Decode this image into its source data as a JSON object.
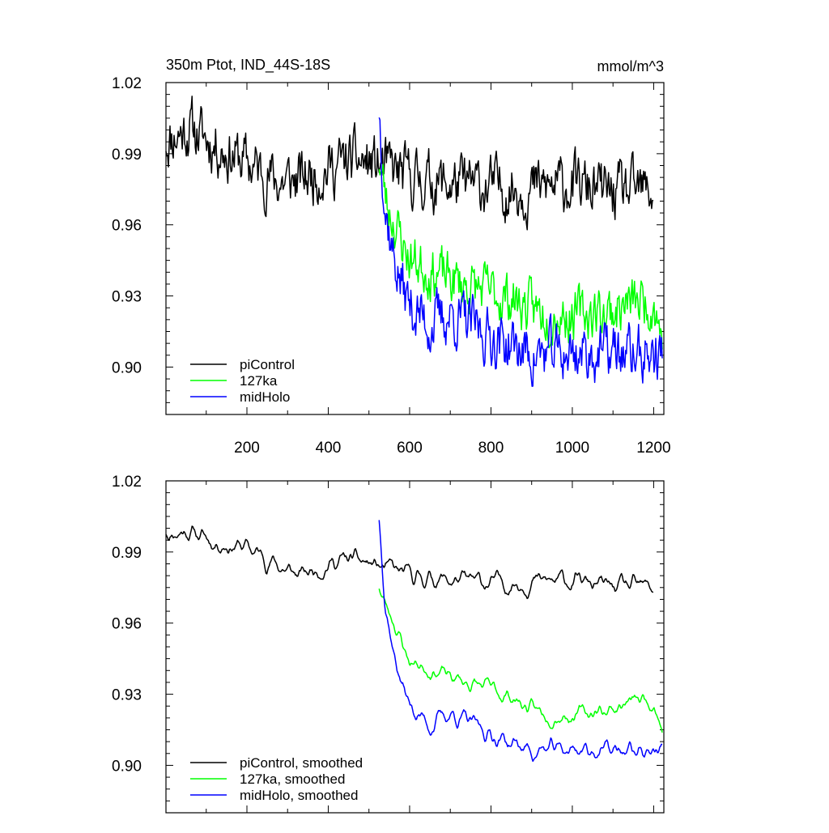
{
  "figure": {
    "top_title_left": "350m Ptot, IND_44S-18S",
    "top_title_right": "mmol/m^3"
  },
  "chart_data": [
    {
      "type": "line",
      "panel": "top",
      "title": "350m Ptot, IND_44S-18S",
      "units": "mmol/m^3",
      "xlim": [
        1,
        1225
      ],
      "ylim": [
        0.88,
        1.02
      ],
      "xticks": [
        200,
        400,
        600,
        800,
        1000,
        1200
      ],
      "xtick_labels": [
        "200",
        "400",
        "600",
        "800",
        "1000",
        "1200"
      ],
      "yticks": [
        1.02,
        0.99,
        0.96,
        0.93,
        0.9
      ],
      "ytick_labels": [
        "1.02",
        "0.99",
        "0.96",
        "0.93",
        "0.90"
      ],
      "legend_position": "bottom-left",
      "series": [
        {
          "name": "piControl",
          "color": "#000000",
          "noise": 0.0125,
          "seed": 11,
          "anchors": [
            [
              1,
              0.996
            ],
            [
              60,
              1.001
            ],
            [
              120,
              0.994
            ],
            [
              200,
              0.986
            ],
            [
              280,
              0.978
            ],
            [
              330,
              0.979
            ],
            [
              400,
              0.984
            ],
            [
              460,
              0.987
            ],
            [
              520,
              0.985
            ],
            [
              600,
              0.98
            ],
            [
              700,
              0.977
            ],
            [
              800,
              0.976
            ],
            [
              900,
              0.975
            ],
            [
              1000,
              0.977
            ],
            [
              1100,
              0.973
            ],
            [
              1200,
              0.974
            ]
          ]
        },
        {
          "name": "127ka",
          "color": "#00ff00",
          "noise": 0.0115,
          "seed": 23,
          "anchors": [
            [
              525,
              0.988
            ],
            [
              545,
              0.968
            ],
            [
              560,
              0.963
            ],
            [
              580,
              0.953
            ],
            [
              600,
              0.946
            ],
            [
              650,
              0.941
            ],
            [
              700,
              0.937
            ],
            [
              800,
              0.931
            ],
            [
              850,
              0.929
            ],
            [
              900,
              0.924
            ],
            [
              1000,
              0.922
            ],
            [
              1100,
              0.924
            ],
            [
              1150,
              0.927
            ],
            [
              1200,
              0.928
            ],
            [
              1222,
              0.912
            ]
          ]
        },
        {
          "name": "midHolo",
          "color": "#0000ff",
          "noise": 0.0125,
          "seed": 37,
          "anchors": [
            [
              525,
              1.01
            ],
            [
              540,
              0.968
            ],
            [
              560,
              0.947
            ],
            [
              580,
              0.935
            ],
            [
              600,
              0.926
            ],
            [
              650,
              0.918
            ],
            [
              700,
              0.922
            ],
            [
              800,
              0.913
            ],
            [
              900,
              0.905
            ],
            [
              1000,
              0.906
            ],
            [
              1100,
              0.906
            ],
            [
              1200,
              0.905
            ],
            [
              1222,
              0.906
            ]
          ]
        }
      ]
    },
    {
      "type": "line",
      "panel": "bottom",
      "xlim": [
        1,
        1225
      ],
      "ylim": [
        0.88,
        1.02
      ],
      "xticks": [
        200,
        400,
        600,
        800,
        1000,
        1200
      ],
      "yticks": [
        1.02,
        0.99,
        0.96,
        0.93,
        0.9
      ],
      "ytick_labels": [
        "1.02",
        "0.99",
        "0.96",
        "0.93",
        "0.90"
      ],
      "legend_position": "bottom-left",
      "series": [
        {
          "name": "piControl, smoothed",
          "color": "#000000",
          "noise": 0.0065,
          "seed": 11,
          "anchors": [
            [
              1,
              0.998
            ],
            [
              60,
              0.999
            ],
            [
              120,
              0.994
            ],
            [
              200,
              0.992
            ],
            [
              250,
              0.987
            ],
            [
              300,
              0.982
            ],
            [
              330,
              0.98
            ],
            [
              400,
              0.985
            ],
            [
              460,
              0.987
            ],
            [
              520,
              0.984
            ],
            [
              600,
              0.98
            ],
            [
              700,
              0.978
            ],
            [
              800,
              0.977
            ],
            [
              900,
              0.977
            ],
            [
              1000,
              0.978
            ],
            [
              1100,
              0.975
            ],
            [
              1200,
              0.975
            ]
          ]
        },
        {
          "name": "127ka, smoothed",
          "color": "#00ff00",
          "noise": 0.006,
          "seed": 23,
          "anchors": [
            [
              525,
              0.975
            ],
            [
              545,
              0.966
            ],
            [
              560,
              0.962
            ],
            [
              580,
              0.952
            ],
            [
              600,
              0.944
            ],
            [
              650,
              0.941
            ],
            [
              700,
              0.937
            ],
            [
              800,
              0.932
            ],
            [
              850,
              0.929
            ],
            [
              900,
              0.923
            ],
            [
              1000,
              0.921
            ],
            [
              1100,
              0.924
            ],
            [
              1150,
              0.927
            ],
            [
              1200,
              0.928
            ],
            [
              1222,
              0.914
            ]
          ]
        },
        {
          "name": "midHolo, smoothed",
          "color": "#0000ff",
          "noise": 0.0065,
          "seed": 37,
          "anchors": [
            [
              525,
              1.004
            ],
            [
              540,
              0.97
            ],
            [
              560,
              0.948
            ],
            [
              580,
              0.935
            ],
            [
              600,
              0.925
            ],
            [
              650,
              0.917
            ],
            [
              700,
              0.922
            ],
            [
              800,
              0.913
            ],
            [
              900,
              0.906
            ],
            [
              1000,
              0.907
            ],
            [
              1100,
              0.906
            ],
            [
              1200,
              0.906
            ],
            [
              1222,
              0.908
            ]
          ]
        }
      ]
    }
  ]
}
